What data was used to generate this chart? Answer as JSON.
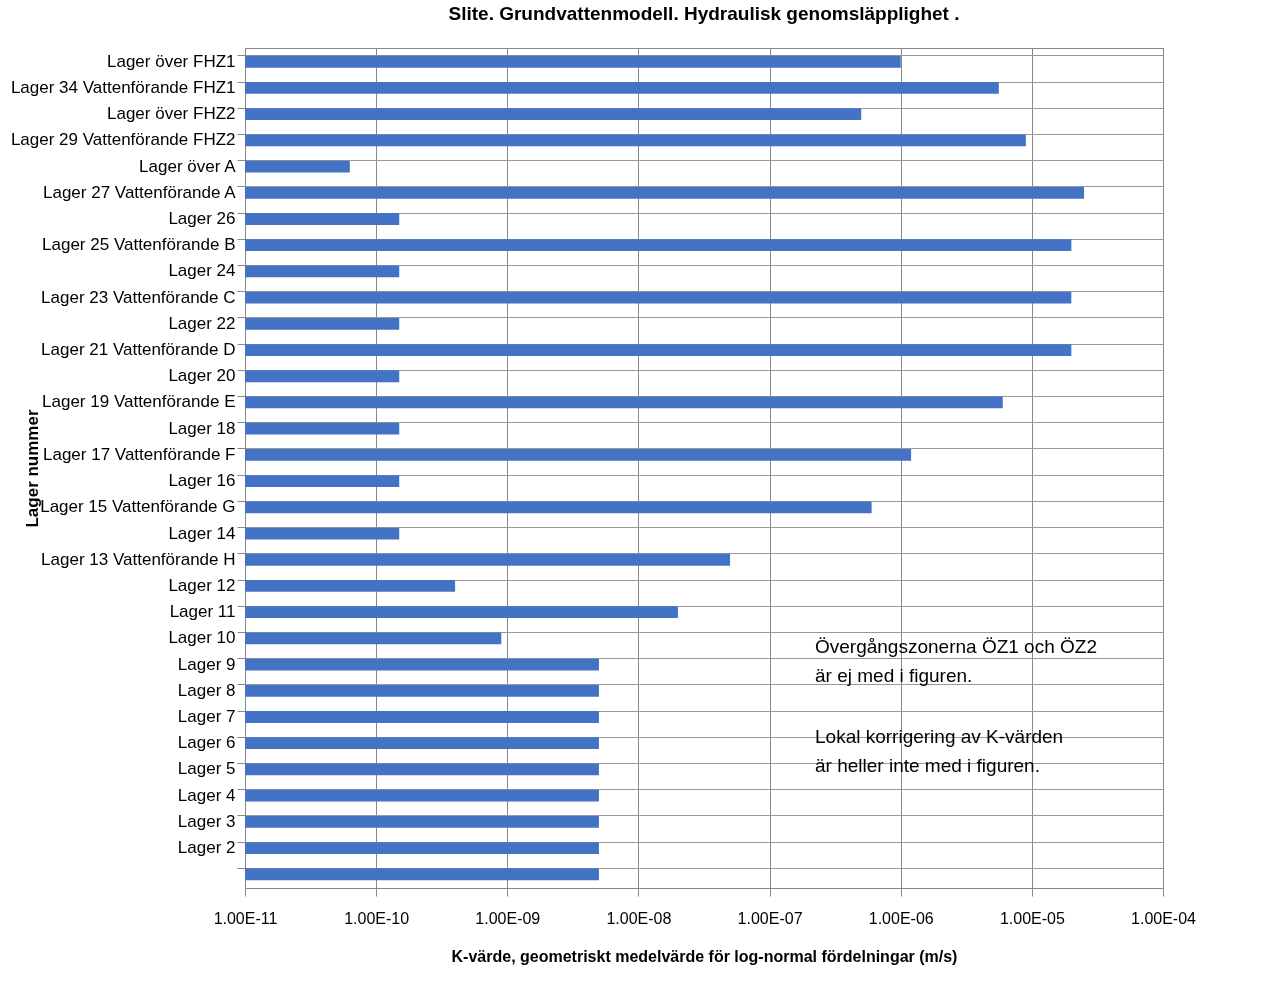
{
  "chart_data": {
    "type": "bar",
    "orientation": "horizontal",
    "title": "Slite. Grundvattenmodell. Hydraulisk genomsläpplighet .",
    "xlabel": "K-värde, geometriskt medelvärde för log-normal  fördelningar  (m/s)",
    "ylabel": "Lager nummer",
    "categories": [
      "Lager över FHZ1",
      "Lager 34  Vattenförande FHZ1",
      "Lager över FHZ2",
      "Lager 29  Vattenförande FHZ2",
      "Lager över A",
      "Lager 27  Vattenförande A",
      "Lager 26",
      "Lager 25  Vattenförande B",
      "Lager 24",
      "Lager 23  Vattenförande C",
      "Lager 22",
      "Lager 21  Vattenförande D",
      "Lager 20",
      "Lager 19  Vattenförande E",
      "Lager 18",
      "Lager 17  Vattenförande F",
      "Lager 16",
      "Lager 15  Vattenförande G",
      "Lager 14",
      "Lager 13  Vattenförande H",
      "Lager 12",
      "Lager 11",
      "Lager 10",
      "Lager 9",
      "Lager 8",
      "Lager 7",
      "Lager 6",
      "Lager 5",
      "Lager 4",
      "Lager 3",
      "Lager 2",
      null
    ],
    "values": [
      1e-06,
      5.6e-06,
      5e-07,
      9e-06,
      6.3e-11,
      2.5e-05,
      1.5e-10,
      2e-05,
      1.5e-10,
      2e-05,
      1.5e-10,
      2e-05,
      1.5e-10,
      6e-06,
      1.5e-10,
      1.2e-06,
      1.5e-10,
      6e-07,
      1.5e-10,
      5e-08,
      4e-10,
      2e-08,
      9e-10,
      5e-09,
      5e-09,
      5e-09,
      5e-09,
      5e-09,
      5e-09,
      5e-09,
      5e-09,
      5e-09
    ],
    "color": "#4472c4",
    "log": "x",
    "xlim": [
      1e-11,
      0.0001
    ],
    "xticks": [
      {
        "value": 1e-11,
        "label": "1.00E-11"
      },
      {
        "value": 1e-10,
        "label": "1.00E-10"
      },
      {
        "value": 1e-09,
        "label": "1.00E-09"
      },
      {
        "value": 1e-08,
        "label": "1.00E-08"
      },
      {
        "value": 1e-07,
        "label": "1.00E-07"
      },
      {
        "value": 1e-06,
        "label": "1.00E-06"
      },
      {
        "value": 1e-05,
        "label": "1.00E-05"
      },
      {
        "value": 0.0001,
        "label": "1.00E-04"
      }
    ],
    "grid": true,
    "annotations": [
      "Övergångszonerna ÖZ1 och ÖZ2\när ej med i figuren.",
      "Lokal korrigering av K-värden\när heller inte med i figuren."
    ]
  }
}
